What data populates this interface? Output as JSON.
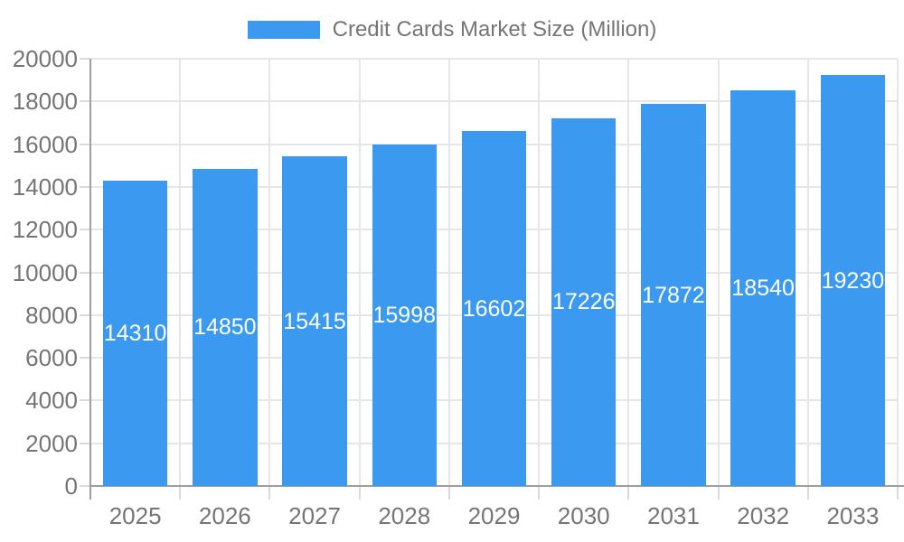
{
  "legend": {
    "label": "Credit Cards Market Size (Million)"
  },
  "colors": {
    "bar": "#3B99F0",
    "grid": "#e6e6e6",
    "tick": "#d9d9d9",
    "axis": "#9e9e9e",
    "axis_text": "#757575",
    "value_text": "#ffffff",
    "background": "#ffffff"
  },
  "chart_data": {
    "type": "bar",
    "title": "Credit Cards Market Size (Million)",
    "categories": [
      "2025",
      "2026",
      "2027",
      "2028",
      "2029",
      "2030",
      "2031",
      "2032",
      "2033"
    ],
    "values": [
      14310,
      14850,
      15415,
      15998,
      16602,
      17226,
      17872,
      18540,
      19230
    ],
    "series": [
      {
        "name": "Credit Cards Market Size (Million)",
        "values": [
          14310,
          14850,
          15415,
          15998,
          16602,
          17226,
          17872,
          18540,
          19230
        ]
      }
    ],
    "xlabel": "",
    "ylabel": "",
    "ylim": [
      0,
      20000
    ],
    "ytick_step": 2000,
    "yticks": [
      0,
      2000,
      4000,
      6000,
      8000,
      10000,
      12000,
      14000,
      16000,
      18000,
      20000
    ],
    "grid": true,
    "legend_position": "top",
    "value_labels": "inside-center"
  }
}
